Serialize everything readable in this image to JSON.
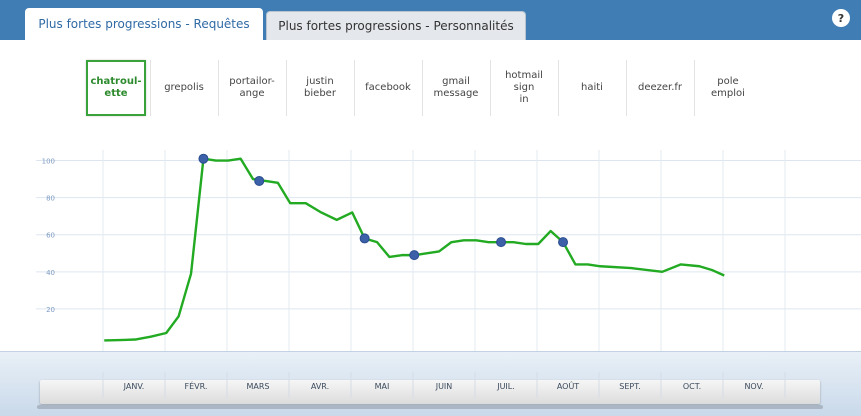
{
  "tabs": [
    {
      "label": "Plus fortes progressions - Requêtes",
      "active": true
    },
    {
      "label": "Plus fortes progressions - Personnalités",
      "active": false
    }
  ],
  "help": {
    "label": "?"
  },
  "queries": [
    {
      "label": "chatroul-\nette",
      "selected": true
    },
    {
      "label": "grepolis"
    },
    {
      "label": "portailor-\nange"
    },
    {
      "label": "justin\nbieber"
    },
    {
      "label": "facebook"
    },
    {
      "label": "gmail\nmessage"
    },
    {
      "label": "hotmail\nsign\nin"
    },
    {
      "label": "haiti"
    },
    {
      "label": "deezer.fr"
    },
    {
      "label": "pole\nemploi"
    }
  ],
  "chart_data": {
    "type": "line",
    "ylim": [
      0,
      110
    ],
    "yticks": [
      20,
      40,
      60,
      80,
      100
    ],
    "categories": [
      "JANV.",
      "FÉVR.",
      "MARS",
      "AVR.",
      "MAI",
      "JUIN",
      "JUIL.",
      "AOÛT",
      "SEPT.",
      "OCT.",
      "NOV."
    ],
    "series": [
      {
        "color": "#22aa22",
        "x": [
          0,
          0.25,
          0.5,
          0.75,
          1,
          1.2,
          1.4,
          1.6,
          1.8,
          2,
          2.2,
          2.4,
          2.6,
          2.8,
          3,
          3.25,
          3.5,
          3.75,
          4,
          4.2,
          4.4,
          4.6,
          4.8,
          5,
          5.2,
          5.4,
          5.6,
          5.8,
          6,
          6.2,
          6.4,
          6.6,
          6.8,
          7,
          7.2,
          7.4,
          7.6,
          7.8,
          8,
          8.5,
          9,
          9.3,
          9.6,
          9.8,
          10
        ],
        "values": [
          3,
          3.2,
          3.5,
          5,
          7,
          16,
          39,
          101,
          100,
          100,
          101,
          90,
          89,
          88,
          77,
          77,
          72,
          68,
          72,
          58,
          56,
          48,
          49,
          49,
          50,
          51,
          56,
          57,
          57,
          56,
          56,
          56,
          55,
          55,
          62,
          56,
          44,
          44,
          43,
          42,
          40,
          44,
          43,
          41,
          38
        ]
      }
    ],
    "markers": [
      {
        "x": 1.6,
        "y": 101
      },
      {
        "x": 2.5,
        "y": 89
      },
      {
        "x": 4.2,
        "y": 58
      },
      {
        "x": 5.0,
        "y": 49
      },
      {
        "x": 6.4,
        "y": 56
      },
      {
        "x": 7.4,
        "y": 56
      }
    ],
    "marker_color": "#3c61a8"
  }
}
